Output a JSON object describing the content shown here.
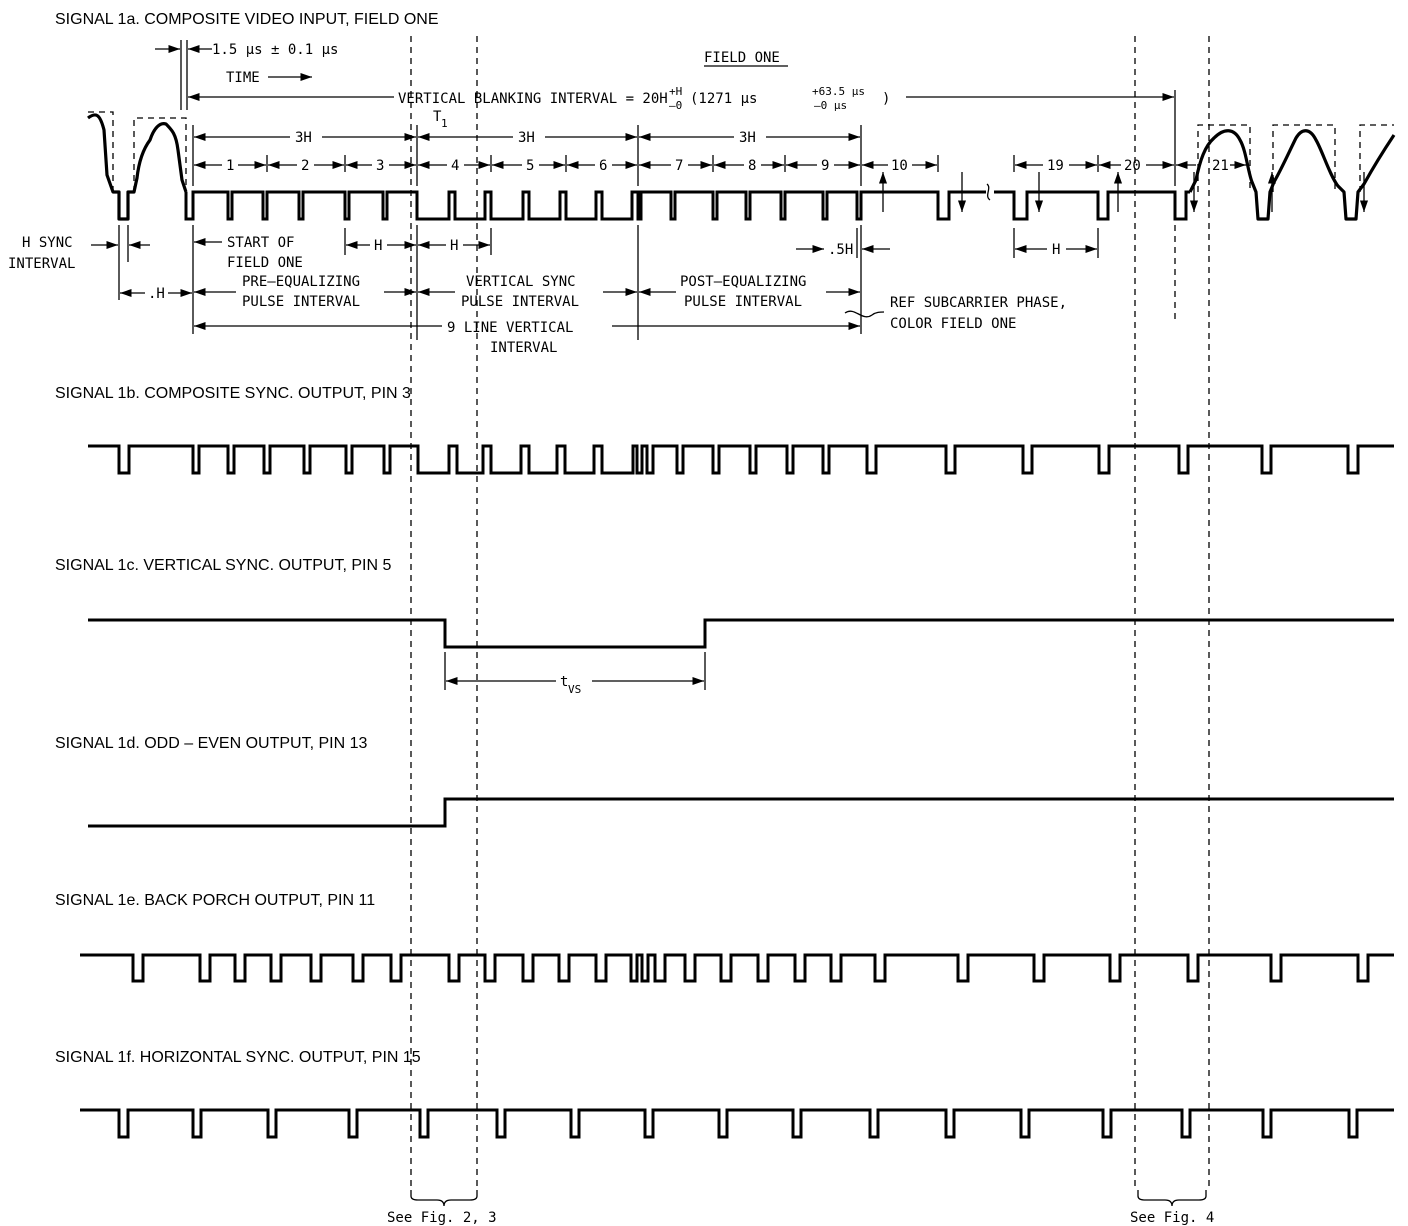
{
  "signals": {
    "s1a": "SIGNAL 1a.  COMPOSITE VIDEO INPUT, FIELD ONE",
    "s1b": "SIGNAL 1b.  COMPOSITE SYNC. OUTPUT, PIN 3",
    "s1c": "SIGNAL 1c.  VERTICAL SYNC. OUTPUT, PIN 5",
    "s1d": "SIGNAL 1d.  ODD – EVEN OUTPUT, PIN 13",
    "s1e": "SIGNAL 1e.  BACK PORCH OUTPUT, PIN 11",
    "s1f": "SIGNAL 1f. HORIZONTAL SYNC. OUTPUT, PIN 15"
  },
  "annotations": {
    "sync_width": "1.5 µs ± 0.1 µs",
    "time": "TIME",
    "field_one": "FIELD ONE",
    "vbi_a": "VERTICAL BLANKING INTERVAL = 20H",
    "vbi_tol_plus": "+H",
    "vbi_tol_minus": "–0",
    "vbi_b": "(1271 µs",
    "vbi_sup": "+63.5 µs",
    "vbi_sub": "–0 µs",
    "vbi_close": ")",
    "t1": "T",
    "t1_sub": "1",
    "three_h": "3H",
    "lines": [
      "1",
      "2",
      "3",
      "4",
      "5",
      "6",
      "7",
      "8",
      "9",
      "10",
      "19",
      "20",
      "21"
    ],
    "h": "H",
    "dot_h": ".H",
    "half_h": ".5H",
    "hsync_1": "H SYNC",
    "hsync_2": "INTERVAL",
    "start_1": "START OF",
    "start_2": "FIELD ONE",
    "pre_1": "PRE–EQUALIZING",
    "pre_2": "PULSE INTERVAL",
    "vs_1": "VERTICAL SYNC",
    "vs_2": "PULSE INTERVAL",
    "post_1": "POST–EQUALIZING",
    "post_2": "PULSE INTERVAL",
    "ref_1": "REF SUBCARRIER PHASE,",
    "ref_2": "COLOR FIELD ONE",
    "nine_1": "9 LINE VERTICAL",
    "nine_2": "INTERVAL",
    "tvs": "t",
    "tvs_sub": "VS",
    "fig23": "See Fig. 2, 3",
    "fig4": "See Fig. 4"
  }
}
